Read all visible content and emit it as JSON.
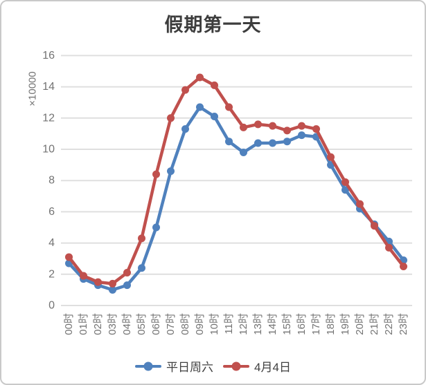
{
  "title": "假期第一天",
  "chart_data": {
    "type": "line",
    "title": "假期第一天",
    "xlabel": "",
    "ylabel": "×10000",
    "ylim": [
      0,
      16
    ],
    "ytick_step": 2,
    "grid": "horizontal",
    "legend_position": "bottom",
    "categories": [
      "00时",
      "01时",
      "02时",
      "03时",
      "04时",
      "05时",
      "06时",
      "07时",
      "08时",
      "09时",
      "10时",
      "11时",
      "12时",
      "13时",
      "14时",
      "15时",
      "16时",
      "17时",
      "18时",
      "19时",
      "20时",
      "21时",
      "22时",
      "23时"
    ],
    "series": [
      {
        "name": "平日周六",
        "color": "#4F81BD",
        "values": [
          2.7,
          1.7,
          1.3,
          1.0,
          1.3,
          2.4,
          5.0,
          8.6,
          11.3,
          12.7,
          12.1,
          10.5,
          9.8,
          10.4,
          10.4,
          10.5,
          10.9,
          10.8,
          9.0,
          7.4,
          6.2,
          5.2,
          4.1,
          2.9
        ]
      },
      {
        "name": "4月4日",
        "color": "#C0504D",
        "values": [
          3.1,
          1.9,
          1.5,
          1.4,
          2.1,
          4.3,
          8.4,
          12.0,
          13.8,
          14.6,
          14.1,
          12.7,
          11.4,
          11.6,
          11.5,
          11.2,
          11.5,
          11.3,
          9.5,
          7.9,
          6.5,
          5.1,
          3.7,
          2.5
        ]
      }
    ]
  },
  "colors": {
    "grid": "#dfdfdf",
    "tick_text": "#737373",
    "title_text": "#3d3d3d",
    "border": "#c9c9c9",
    "background": "#ffffff"
  }
}
